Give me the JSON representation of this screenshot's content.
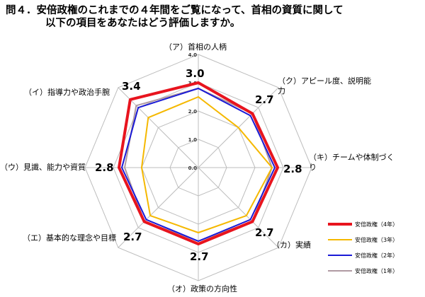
{
  "title_line1": "問４．安倍政権のこれまでの４年間をご覧になって、首相の資質に関して",
  "title_line2": "以下の項目をあなたはどう評価しますか。",
  "chart_data": {
    "type": "radar",
    "title": "問４．安倍政権のこれまでの４年間をご覧になって、首相の資質に関して以下の項目をあなたはどう評価しますか。",
    "axes": [
      "（ア）首相の人柄",
      "（ク）アピール度、説明能力",
      "（キ）チームや体制づくり",
      "（カ）実績",
      "（オ）政策の方向性",
      "（エ）基本的な理念や目標",
      "（ウ）見識、能力や資質",
      "（イ）指導力や政治手腕"
    ],
    "range": [
      0.0,
      4.0
    ],
    "ticks": [
      "0.0",
      "1.0",
      "2.0",
      "3.0",
      "4.0"
    ],
    "series": [
      {
        "name": "安倍政権（4年）",
        "color": "#e8141e",
        "values": [
          3.0,
          2.7,
          2.8,
          2.7,
          2.7,
          2.7,
          2.8,
          3.4
        ]
      },
      {
        "name": "安倍政権（3年）",
        "color": "#f5b800",
        "values": [
          2.5,
          2.0,
          2.6,
          2.4,
          2.3,
          2.4,
          2.0,
          2.5
        ]
      },
      {
        "name": "安倍政権（2年）",
        "color": "#1a1ad6",
        "values": [
          2.8,
          2.6,
          2.7,
          2.6,
          2.6,
          2.6,
          2.7,
          3.0
        ]
      },
      {
        "name": "安倍政権（1年）",
        "color": "#b09aa2",
        "values": [
          2.8,
          2.7,
          2.6,
          2.7,
          2.6,
          2.7,
          2.6,
          3.1
        ]
      }
    ],
    "value_labels": [
      "3.0",
      "2.7",
      "2.8",
      "2.7",
      "2.7",
      "2.7",
      "2.8",
      "3.4"
    ]
  }
}
